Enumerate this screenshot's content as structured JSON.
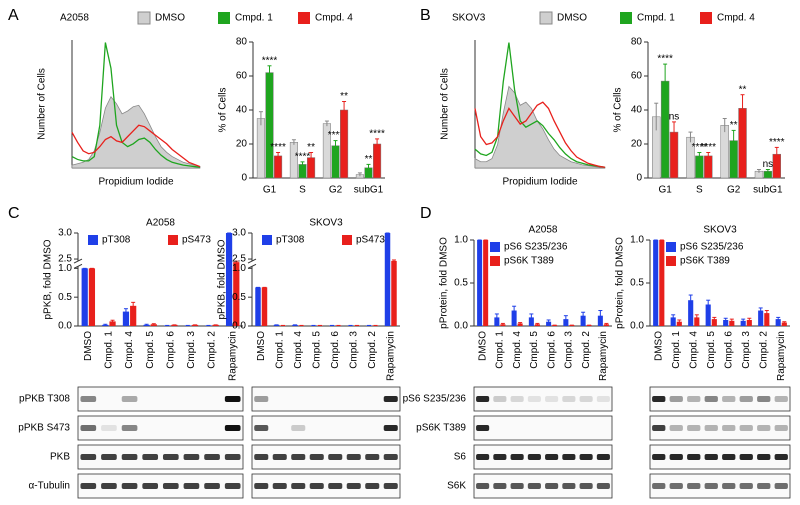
{
  "panels": [
    "A",
    "B",
    "C",
    "D"
  ],
  "blots": [
    {
      "labels": [
        "pPKB T308",
        "pPKB S473",
        "PKB",
        "α-Tubulin"
      ]
    },
    {
      "labels": [
        "pS6 S235/236",
        "pS6K T389",
        "S6",
        "S6K"
      ]
    }
  ],
  "chart_data": [
    {
      "type": "line",
      "title": "A2058",
      "xlabel": "Propidium Iodide",
      "ylabel": "Number of Cells",
      "legend": "top",
      "series": [
        {
          "name": "DMSO",
          "color": "#cfcfcf",
          "fill": true,
          "values": [
            20,
            30,
            40,
            60,
            120,
            250,
            420,
            500,
            450,
            380,
            400,
            430,
            440,
            380,
            300,
            220,
            150,
            110,
            80,
            60,
            40,
            30,
            20,
            10
          ]
        },
        {
          "name": "Cmpd. 1",
          "color": "#1fa51f",
          "values": [
            80,
            60,
            50,
            50,
            80,
            300,
            880,
            700,
            300,
            180,
            150,
            170,
            200,
            210,
            180,
            130,
            90,
            60,
            40,
            30,
            20,
            15,
            10,
            5
          ]
        },
        {
          "name": "Cmpd. 4",
          "color": "#e8201c",
          "values": [
            250,
            180,
            120,
            100,
            110,
            150,
            200,
            220,
            190,
            180,
            220,
            260,
            300,
            290,
            260,
            230,
            200,
            170,
            130,
            100,
            70,
            40,
            25,
            10
          ]
        }
      ]
    },
    {
      "type": "bar",
      "ylabel": "% of Cells",
      "categories": [
        "G1",
        "S",
        "G2",
        "subG1"
      ],
      "ylim": [
        0,
        80
      ],
      "yticks": [
        0,
        20,
        40,
        60,
        80
      ],
      "series": [
        {
          "color": "#d9d9d9",
          "values": [
            35,
            21,
            32,
            2
          ],
          "errors": [
            4,
            1.5,
            1.5,
            1
          ]
        },
        {
          "color": "#1fa51f",
          "values": [
            62,
            8,
            19,
            6
          ],
          "errors": [
            4,
            1.5,
            3,
            2
          ],
          "annotations": [
            "****",
            "****",
            "****",
            "**"
          ]
        },
        {
          "color": "#e8201c",
          "values": [
            13,
            12,
            40,
            20
          ],
          "errors": [
            2,
            3,
            5,
            3
          ],
          "annotations": [
            "****",
            "**",
            "**",
            "****"
          ]
        }
      ]
    },
    {
      "type": "line",
      "title": "SKOV3",
      "xlabel": "Propidium Iodide",
      "ylabel": "Number of Cells",
      "legend": "top",
      "series": [
        {
          "name": "DMSO",
          "color": "#cfcfcf",
          "fill": true,
          "values": [
            60,
            40,
            40,
            60,
            150,
            350,
            520,
            480,
            400,
            420,
            380,
            300,
            250,
            180,
            120,
            80,
            60,
            40,
            30,
            20,
            15,
            10,
            5,
            5
          ]
        },
        {
          "name": "Cmpd. 1",
          "color": "#1fa51f",
          "values": [
            120,
            90,
            80,
            100,
            200,
            550,
            800,
            500,
            300,
            260,
            280,
            300,
            270,
            220,
            180,
            130,
            90,
            60,
            40,
            30,
            20,
            15,
            10,
            5
          ]
        },
        {
          "name": "Cmpd. 4",
          "color": "#e8201c",
          "values": [
            380,
            200,
            150,
            160,
            200,
            300,
            380,
            330,
            280,
            300,
            350,
            400,
            420,
            380,
            300,
            230,
            160,
            110,
            70,
            50,
            30,
            20,
            10,
            5
          ]
        }
      ]
    },
    {
      "type": "bar",
      "ylabel": "% of Cells",
      "categories": [
        "G1",
        "S",
        "G2",
        "subG1"
      ],
      "ylim": [
        0,
        80
      ],
      "yticks": [
        0,
        20,
        40,
        60,
        80
      ],
      "series": [
        {
          "color": "#d9d9d9",
          "values": [
            36,
            24,
            31,
            4
          ],
          "errors": [
            8,
            3,
            4,
            1
          ]
        },
        {
          "color": "#1fa51f",
          "values": [
            57,
            13,
            22,
            4
          ],
          "errors": [
            10,
            2,
            6,
            1
          ],
          "annotations": [
            "****",
            "****",
            "**",
            "ns"
          ]
        },
        {
          "color": "#e8201c",
          "values": [
            27,
            13,
            41,
            14
          ],
          "errors": [
            6,
            2,
            8,
            4
          ],
          "annotations": [
            "ns",
            "****",
            "**",
            "****"
          ]
        }
      ]
    },
    {
      "type": "bar",
      "title": "A2058",
      "ylabel": "pPKB, fold DMSO",
      "legend": "upper left",
      "categories": [
        "DMSO",
        "Cmpd. 1",
        "Cmpd. 4",
        "Cmpd. 5",
        "Cmpd. 6",
        "Cmpd. 3",
        "Cmpd. 2",
        "Rapamycin"
      ],
      "ylim": [
        0,
        3
      ],
      "ybreak": [
        1,
        2.5
      ],
      "yticks": [
        {
          "value": 0,
          "label": "0.0"
        },
        {
          "value": 0.5,
          "label": "0.5"
        },
        {
          "value": 1,
          "label": "1.0"
        },
        {
          "value": 2.5,
          "label": "2.5"
        },
        {
          "value": 3,
          "label": "3.0"
        }
      ],
      "series": [
        {
          "name": "pT308",
          "color": "#1f3fe8",
          "values": [
            1.0,
            0.02,
            0.25,
            0.02,
            0.01,
            0.01,
            0.01,
            3.0
          ],
          "errors": [
            0,
            0.01,
            0.05,
            0.01,
            0,
            0,
            0,
            0
          ]
        },
        {
          "name": "pS473",
          "color": "#e8201c",
          "values": [
            1.0,
            0.08,
            0.35,
            0.03,
            0.02,
            0.02,
            0.02,
            2.0
          ],
          "errors": [
            0,
            0.02,
            0.06,
            0.01,
            0,
            0,
            0,
            0.15
          ]
        }
      ]
    },
    {
      "type": "bar",
      "title": "SKOV3",
      "ylabel": "pPKB, fold DMSO",
      "legend": "upper left",
      "categories": [
        "DMSO",
        "Cmpd. 1",
        "Cmpd. 4",
        "Cmpd. 5",
        "Cmpd. 6",
        "Cmpd. 3",
        "Cmpd. 2",
        "Rapamycin"
      ],
      "ylim": [
        0,
        3
      ],
      "ybreak": [
        1,
        2.5
      ],
      "yticks": [
        {
          "value": 0,
          "label": "0.0"
        },
        {
          "value": 0.5,
          "label": "0.5"
        },
        {
          "value": 1,
          "label": "1.0"
        },
        {
          "value": 2.5,
          "label": "2.5"
        },
        {
          "value": 3,
          "label": "3.0"
        }
      ],
      "series": [
        {
          "name": "pT308",
          "color": "#1f3fe8",
          "values": [
            0.67,
            0.02,
            0.02,
            0.01,
            0.01,
            0.01,
            0.01,
            3.0
          ],
          "errors": [
            0,
            0,
            0,
            0,
            0,
            0,
            0,
            0
          ]
        },
        {
          "name": "pS473",
          "color": "#e8201c",
          "values": [
            0.67,
            0.01,
            0.01,
            0.01,
            0.01,
            0.01,
            0.01,
            2.2
          ],
          "errors": [
            0,
            0,
            0,
            0,
            0,
            0,
            0,
            0.15
          ]
        }
      ]
    },
    {
      "type": "bar",
      "title": "A2058",
      "ylabel": "pProtein, fold DMSO",
      "legend": "upper left",
      "categories": [
        "DMSO",
        "Cmpd. 1",
        "Cmpd. 4",
        "Cmpd. 5",
        "Cmpd. 6",
        "Cmpd. 3",
        "Cmpd. 2",
        "Rapamycin"
      ],
      "ylim": [
        0,
        1
      ],
      "yticks": [
        {
          "value": 0,
          "label": "0.0"
        },
        {
          "value": 0.5,
          "label": "0.5"
        },
        {
          "value": 1,
          "label": "1.0"
        }
      ],
      "series": [
        {
          "name": "pS6 S235/236",
          "color": "#1f3fe8",
          "values": [
            1.0,
            0.1,
            0.18,
            0.1,
            0.05,
            0.08,
            0.12,
            0.12
          ],
          "errors": [
            0,
            0.04,
            0.05,
            0.04,
            0.02,
            0.04,
            0.04,
            0.06
          ]
        },
        {
          "name": "pS6K T389",
          "color": "#e8201c",
          "values": [
            1.0,
            0.02,
            0.03,
            0.02,
            0.01,
            0.01,
            0.01,
            0.02
          ],
          "errors": [
            0,
            0.01,
            0.01,
            0.01,
            0,
            0,
            0,
            0.01
          ]
        }
      ]
    },
    {
      "type": "bar",
      "title": "SKOV3",
      "ylabel": "pProtein, fold DMSO",
      "legend": "upper left",
      "categories": [
        "DMSO",
        "Cmpd. 1",
        "Cmpd. 4",
        "Cmpd. 5",
        "Cmpd. 6",
        "Cmpd. 3",
        "Cmpd. 2",
        "Rapamycin"
      ],
      "ylim": [
        0,
        1
      ],
      "yticks": [
        {
          "value": 0,
          "label": "0.0"
        },
        {
          "value": 0.5,
          "label": "0.5"
        },
        {
          "value": 1,
          "label": "1.0"
        }
      ],
      "series": [
        {
          "name": "pS6 S235/236",
          "color": "#1f3fe8",
          "values": [
            1.0,
            0.1,
            0.3,
            0.25,
            0.07,
            0.06,
            0.18,
            0.08
          ],
          "errors": [
            0,
            0.03,
            0.06,
            0.05,
            0.02,
            0.02,
            0.03,
            0.02
          ]
        },
        {
          "name": "pS6K T389",
          "color": "#e8201c",
          "values": [
            1.0,
            0.05,
            0.1,
            0.08,
            0.06,
            0.07,
            0.15,
            0.04
          ],
          "errors": [
            0,
            0.02,
            0.03,
            0.02,
            0.02,
            0.02,
            0.03,
            0.01
          ]
        }
      ]
    }
  ]
}
